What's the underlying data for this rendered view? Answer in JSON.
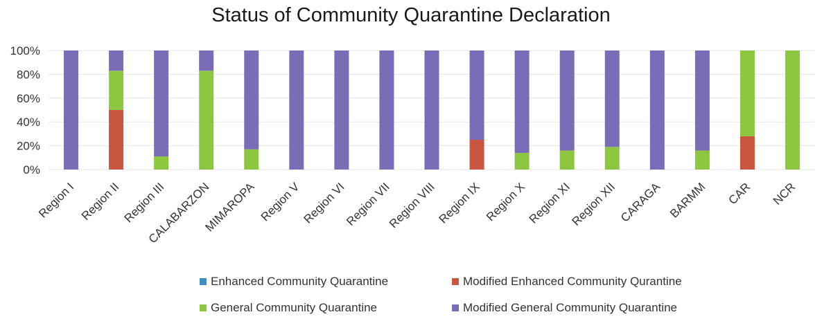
{
  "chart_data": {
    "type": "bar",
    "stacked": true,
    "title": "Status of Community Quarantine Declaration",
    "xlabel": "",
    "ylabel": "",
    "ylim": [
      0,
      100
    ],
    "yticks": [
      "0%",
      "20%",
      "40%",
      "60%",
      "80%",
      "100%"
    ],
    "categories": [
      "Region I",
      "Region II",
      "Region III",
      "CALABARZON",
      "MIMAROPA",
      "Region V",
      "Region VI",
      "Region VII",
      "Region VIII",
      "Region IX",
      "Region X",
      "Region XI",
      "Region XII",
      "CARAGA",
      "BARMM",
      "CAR",
      "NCR"
    ],
    "series": [
      {
        "name": "Enhanced Community Quarantine",
        "color": "#3f8fc4",
        "values": [
          0,
          0,
          0,
          0,
          0,
          0,
          0,
          0,
          0,
          0,
          0,
          0,
          0,
          0,
          0,
          0,
          0
        ]
      },
      {
        "name": "Modified Enhanced Community Qurantine",
        "color": "#c9563f",
        "values": [
          0,
          50,
          0,
          0,
          0,
          0,
          0,
          0,
          0,
          25,
          0,
          0,
          0,
          0,
          0,
          28,
          0
        ]
      },
      {
        "name": "General Community Quarantine",
        "color": "#8dc73f",
        "values": [
          0,
          33,
          11,
          83,
          17,
          0,
          0,
          0,
          0,
          0,
          14,
          16,
          19,
          0,
          16,
          72,
          100
        ]
      },
      {
        "name": "Modified General Community Quarantine",
        "color": "#7b6cb8",
        "values": [
          100,
          17,
          89,
          17,
          83,
          100,
          100,
          100,
          100,
          75,
          86,
          84,
          81,
          100,
          84,
          0,
          0
        ]
      }
    ],
    "legend_position": "bottom",
    "grid": true
  }
}
